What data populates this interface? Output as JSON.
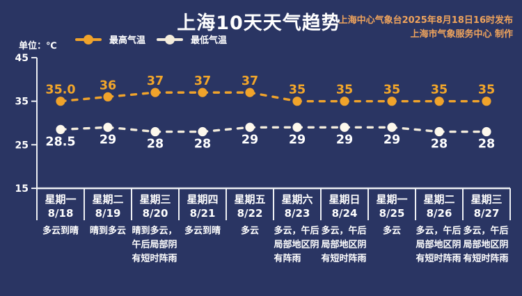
{
  "header": {
    "title": "上海10天天气趋势",
    "source_line1": "上海中心气象台2025年8月18日16时发布",
    "source_line2": "上海市气象服务中心 制作"
  },
  "unit_label": "单位：℃",
  "legend": {
    "high_label": "最高气温",
    "low_label": "最低气温"
  },
  "colors": {
    "background": "#2a3563",
    "accent_orange": "#f0a32b",
    "low_line": "#f3ecdc",
    "low_marker": "#fdf8ec",
    "source_text": "#f0a45c",
    "axis": "#eef0f4",
    "white_text": "#ffffff"
  },
  "chart_data": {
    "type": "line",
    "title": "上海10天天气趋势",
    "x": [
      "8/18",
      "8/19",
      "8/20",
      "8/21",
      "8/22",
      "8/23",
      "8/24",
      "8/25",
      "8/26",
      "8/27"
    ],
    "series": [
      {
        "name": "最高气温",
        "color": "#f0a32b",
        "marker_color": "#f0a32b",
        "label_color": "#f2a62a",
        "values": [
          35.0,
          36,
          37,
          37,
          37,
          35,
          35,
          35,
          35,
          35
        ],
        "labels": [
          "35.0",
          "36",
          "37",
          "37",
          "37",
          "35",
          "35",
          "35",
          "35",
          "35"
        ],
        "label_side": "above"
      },
      {
        "name": "最低气温",
        "color": "#f3ecdc",
        "marker_color": "#fdf8ec",
        "label_color": "#ffffff",
        "values": [
          28.5,
          29,
          28,
          28,
          29,
          29,
          29,
          29,
          28,
          28
        ],
        "labels": [
          "28.5",
          "29",
          "28",
          "28",
          "29",
          "29",
          "29",
          "29",
          "28",
          "28"
        ],
        "label_side": "below"
      }
    ],
    "ylim": [
      15,
      45
    ],
    "yticks": [
      45,
      35,
      25,
      15
    ],
    "grid": false,
    "legend_position": "top-left",
    "line_style": "dashed"
  },
  "forecast": [
    {
      "day": "星期一",
      "date": "8/18",
      "weather": "多云到晴"
    },
    {
      "day": "星期二",
      "date": "8/19",
      "weather": "晴到多云"
    },
    {
      "day": "星期三",
      "date": "8/20",
      "weather": "晴到多云，午后局部阴有短时阵雨"
    },
    {
      "day": "星期四",
      "date": "8/21",
      "weather": "多云到晴"
    },
    {
      "day": "星期五",
      "date": "8/22",
      "weather": "多云"
    },
    {
      "day": "星期六",
      "date": "8/23",
      "weather": "多云，午后局部地区阴有阵雨"
    },
    {
      "day": "星期日",
      "date": "8/24",
      "weather": "多云，午后局部地区阴有短时阵雨"
    },
    {
      "day": "星期一",
      "date": "8/25",
      "weather": "多云"
    },
    {
      "day": "星期二",
      "date": "8/26",
      "weather": "多云，午后局部地区阴有短时阵雨"
    },
    {
      "day": "星期三",
      "date": "8/27",
      "weather": "多云，午后局部地区阴有短时阵雨"
    }
  ]
}
